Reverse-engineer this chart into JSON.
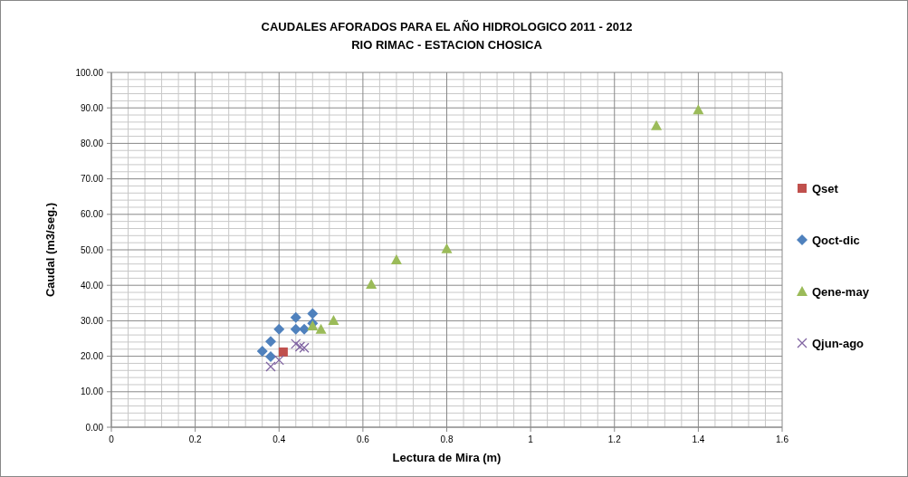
{
  "chart_data": {
    "type": "scatter",
    "title": "CAUDALES AFORADOS PARA EL AÑO HIDROLOGICO 2011 - 2012",
    "subtitle": "RIO RIMAC - ESTACION CHOSICA",
    "xlabel": "Lectura de Mira (m)",
    "ylabel": "Caudal (m3/seg.)",
    "xlim": [
      0,
      1.6
    ],
    "xticks": [
      0,
      0.2,
      0.4,
      0.6,
      0.8,
      1,
      1.2,
      1.4,
      1.6
    ],
    "ylim": [
      0,
      100
    ],
    "yticks": [
      {
        "value": 0,
        "label": "0.00"
      },
      {
        "value": 10,
        "label": "10.00"
      },
      {
        "value": 20,
        "label": "20.00"
      },
      {
        "value": 30,
        "label": "30.00"
      },
      {
        "value": 40,
        "label": "40.00"
      },
      {
        "value": 50,
        "label": "50.00"
      },
      {
        "value": 60,
        "label": "60.00"
      },
      {
        "value": 70,
        "label": "70.00"
      },
      {
        "value": 80,
        "label": "80.00"
      },
      {
        "value": 90,
        "label": "90.00"
      },
      {
        "value": 100,
        "label": "100.00"
      }
    ],
    "grid": true,
    "legend": "right",
    "series": [
      {
        "name": "Qset",
        "color": "#c0504d",
        "marker": "square",
        "x": [
          0.41
        ],
        "values": [
          21.2
        ]
      },
      {
        "name": "Qoct-dic",
        "color": "#4f81bd",
        "marker": "diamond",
        "x": [
          0.36,
          0.38,
          0.4,
          0.38,
          0.44,
          0.44,
          0.46,
          0.48,
          0.48
        ],
        "values": [
          21.4,
          24.2,
          27.6,
          19.9,
          30.9,
          27.6,
          27.6,
          32.0,
          29.3
        ]
      },
      {
        "name": "Qene-may",
        "color": "#9bbb59",
        "marker": "triangle",
        "x": [
          0.48,
          0.5,
          0.53,
          0.62,
          0.68,
          0.8,
          1.3,
          1.4
        ],
        "values": [
          28.6,
          27.6,
          30.1,
          40.3,
          47.2,
          50.3,
          85,
          89.5
        ]
      },
      {
        "name": "Qjun-ago",
        "color": "#8064a2",
        "marker": "cross",
        "x": [
          0.38,
          0.4,
          0.44,
          0.45,
          0.46
        ],
        "values": [
          17.1,
          18.9,
          23.5,
          22.7,
          22.4
        ]
      }
    ]
  }
}
